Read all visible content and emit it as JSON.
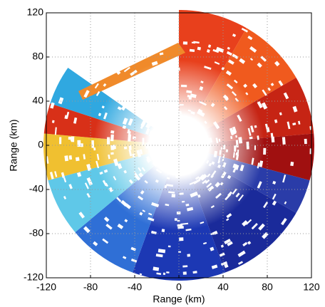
{
  "chart_data": {
    "type": "radar-ppi",
    "xlabel": "Range (km)",
    "ylabel": "Range (km)",
    "xlim": [
      -120,
      120
    ],
    "ylim": [
      -120,
      120
    ],
    "xticks": [
      -120,
      -80,
      -40,
      0,
      40,
      80,
      120
    ],
    "yticks": [
      -120,
      -80,
      -40,
      0,
      40,
      80,
      120
    ],
    "grid": true
  }
}
